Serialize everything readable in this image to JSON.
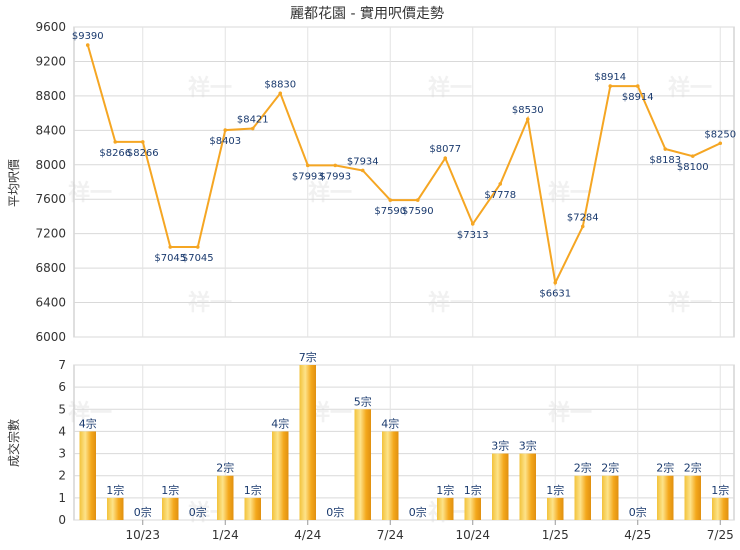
{
  "chart_data": [
    {
      "type": "line",
      "title": "麗都花園 - 實用呎價走勢",
      "ylabel": "平均呎價",
      "ylim": [
        6000,
        9600
      ],
      "yticks": [
        6000,
        6400,
        6800,
        7200,
        7600,
        8000,
        8400,
        8800,
        9200,
        9600
      ],
      "grid": true,
      "color": "#f5a623",
      "series": [
        {
          "values": [
            9390,
            8266,
            8266,
            7045,
            7045,
            8403,
            8421,
            8830,
            7993,
            7993,
            7934,
            7590,
            7590,
            8077,
            7313,
            7778,
            8530,
            6631,
            7284,
            8914,
            8914,
            8183,
            8100,
            8250
          ]
        }
      ],
      "data_labels": [
        "$9390",
        "$8266",
        "$8266",
        "$7045",
        "$7045",
        "$8403",
        "$8421",
        "$8830",
        "$7993",
        "$7993",
        "$7934",
        "$7590",
        "$7590",
        "$8077",
        "$7313",
        "$7778",
        "$8530",
        "$6631",
        "$7284",
        "$8914",
        "$8914",
        "$8183",
        "$8100",
        "$8250"
      ]
    },
    {
      "type": "bar",
      "ylabel": "成交宗數",
      "ylim": [
        0,
        7
      ],
      "yticks": [
        0,
        1,
        2,
        3,
        4,
        5,
        6,
        7
      ],
      "grid": true,
      "color": "#f0a81e",
      "x_tick_labels": [
        "10/23",
        "1/24",
        "4/24",
        "7/24",
        "10/24",
        "1/25",
        "4/25",
        "7/25"
      ],
      "series": [
        {
          "values": [
            4,
            1,
            0,
            1,
            0,
            2,
            1,
            4,
            7,
            0,
            5,
            4,
            0,
            1,
            1,
            3,
            3,
            1,
            2,
            2,
            0,
            2,
            2,
            1
          ]
        }
      ],
      "data_labels": [
        "4宗",
        "1宗",
        "0宗",
        "1宗",
        "0宗",
        "2宗",
        "1宗",
        "4宗",
        "7宗",
        "0宗",
        "5宗",
        "4宗",
        "0宗",
        "1宗",
        "1宗",
        "3宗",
        "3宗",
        "1宗",
        "2宗",
        "2宗",
        "0宗",
        "2宗",
        "2宗",
        "1宗"
      ]
    }
  ],
  "watermark": "祥一"
}
